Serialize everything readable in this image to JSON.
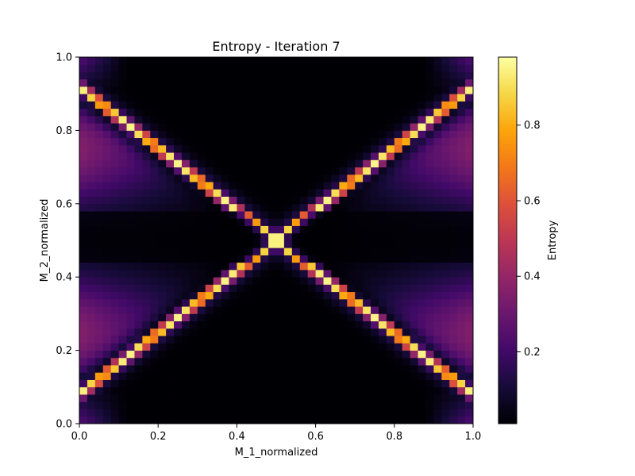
{
  "chart_data": {
    "type": "heatmap",
    "title": "Entropy - Iteration 7",
    "xlabel": "M_1_normalized",
    "ylabel": "M_2_normalized",
    "xlim": [
      0.0,
      1.0
    ],
    "ylim": [
      0.0,
      1.0
    ],
    "x_ticks": [
      "0.0",
      "0.2",
      "0.4",
      "0.6",
      "0.8",
      "1.0"
    ],
    "y_ticks": [
      "0.0",
      "0.2",
      "0.4",
      "0.6",
      "0.8",
      "1.0"
    ],
    "grid_size": 50,
    "colormap": "inferno",
    "colorbar": {
      "label": "Entropy",
      "range": [
        0.01,
        0.98
      ],
      "ticks": [
        "0.2",
        "0.4",
        "0.6",
        "0.8"
      ]
    },
    "pattern": "Entropy is high (~0.95) along two crossing ridges |y-0.5| = 0.42*|x-0.5|^0.8 approx, i.e. an X meeting at (0.5,0.5); moderate (0.2-0.4) purple lobes between the ridges near the left and right edges; near zero in the top/bottom wedge and a dark band around y≈0.5 away from the center; peak ~0.7 orange blob at the center.",
    "grid": false,
    "legend": "none"
  }
}
